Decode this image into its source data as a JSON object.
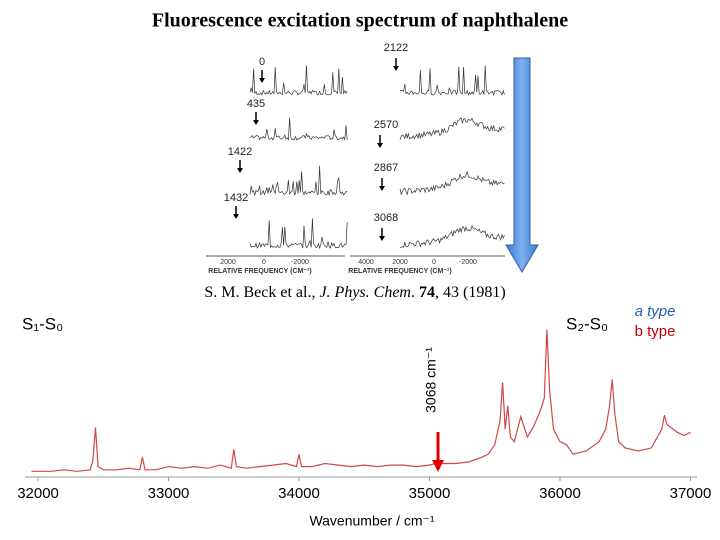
{
  "title": "Fluorescence excitation spectrum of naphthalene",
  "citation": {
    "authors": "S. M. Beck et al., ",
    "journal": "J. Phys. Chem",
    "sep": ". ",
    "volume": "74",
    "rest": ", 43 (1981)"
  },
  "insets": {
    "left_labels": [
      "0",
      "435",
      "1422",
      "1432"
    ],
    "right_labels": [
      "2122",
      "2570",
      "2867",
      "3068"
    ],
    "axis_label": "RELATIVE FREQUENCY (CM⁻¹)",
    "left_ticks": [
      "2000",
      "0",
      "-2000"
    ],
    "right_ticks": [
      "4000",
      "2000",
      "0",
      "-2000"
    ]
  },
  "chart_data": {
    "type": "line",
    "xlabel": "Wavenumber / cm⁻¹",
    "annotations": [
      "S₁-S₀",
      "S₂-S₀",
      "3068 cm⁻¹"
    ],
    "legend": [
      {
        "label": "a type",
        "color": "#2a5cb8"
      },
      {
        "label": "b type",
        "color": "#c00000"
      }
    ],
    "color": "#d04848",
    "xlim": [
      31900,
      37050
    ],
    "ylim": [
      0,
      100
    ],
    "xticks": [
      32000,
      33000,
      34000,
      35000,
      36000,
      37000
    ],
    "x": [
      31950,
      32000,
      32100,
      32200,
      32300,
      32400,
      32420,
      32440,
      32460,
      32500,
      32600,
      32700,
      32780,
      32800,
      32820,
      32900,
      33000,
      33100,
      33200,
      33300,
      33400,
      33480,
      33500,
      33520,
      33600,
      33700,
      33800,
      33900,
      33980,
      34000,
      34020,
      34100,
      34200,
      34300,
      34400,
      34500,
      34600,
      34700,
      34800,
      34900,
      35000,
      35050,
      35070,
      35090,
      35200,
      35300,
      35400,
      35450,
      35500,
      35540,
      35560,
      35580,
      35600,
      35620,
      35650,
      35700,
      35750,
      35800,
      35850,
      35880,
      35900,
      35920,
      35950,
      36000,
      36050,
      36100,
      36200,
      36300,
      36350,
      36380,
      36400,
      36420,
      36450,
      36500,
      36600,
      36700,
      36780,
      36800,
      36820,
      36900,
      36950,
      37000
    ],
    "values": [
      3,
      3,
      3,
      4,
      3,
      4,
      10,
      31,
      6,
      4,
      4,
      5,
      4,
      12,
      4,
      4,
      6,
      5,
      6,
      5,
      7,
      5,
      17,
      6,
      5,
      6,
      7,
      8,
      6,
      14,
      6,
      6,
      8,
      7,
      6,
      7,
      6,
      7,
      7,
      6,
      7,
      8,
      11,
      8,
      8,
      9,
      12,
      14,
      20,
      35,
      60,
      30,
      45,
      25,
      22,
      38,
      25,
      32,
      42,
      50,
      94,
      55,
      30,
      22,
      20,
      14,
      16,
      22,
      30,
      45,
      62,
      40,
      22,
      18,
      16,
      18,
      30,
      39,
      33,
      28,
      26,
      28
    ]
  }
}
